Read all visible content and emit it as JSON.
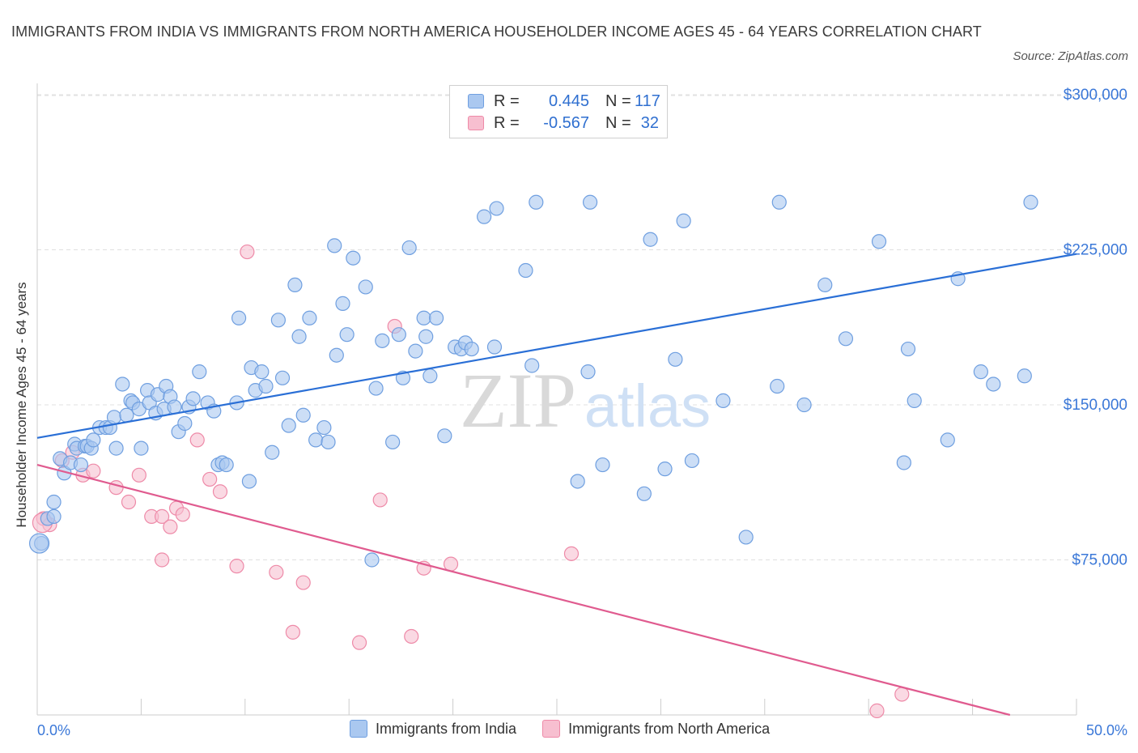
{
  "title": "IMMIGRANTS FROM INDIA VS IMMIGRANTS FROM NORTH AMERICA HOUSEHOLDER INCOME AGES 45 - 64 YEARS CORRELATION CHART",
  "source": "Source: ZipAtlas.com",
  "watermark": {
    "zip": "ZIP",
    "atlas": "atlas"
  },
  "legend": {
    "r_label": "R =",
    "n_label": "N =",
    "india": {
      "r": "0.445",
      "n": "117"
    },
    "north_america": {
      "r": "-0.567",
      "n": "32"
    }
  },
  "bottom_legend": {
    "india": "Immigrants from India",
    "north_america": "Immigrants from North America"
  },
  "colors": {
    "india_fill": "#aac8f0",
    "india_stroke": "#6f9fe0",
    "india_line": "#2a6fd6",
    "na_fill": "#f7bfd0",
    "na_stroke": "#ee8aa8",
    "na_line": "#e05b8f",
    "axis_text": "#3b78d8",
    "grid": "#e0e0e0"
  },
  "chart_data": {
    "type": "scatter",
    "xlabel": "",
    "ylabel": "Householder Income Ages 45 - 64 years",
    "xlim": [
      0,
      50
    ],
    "ylim": [
      0,
      300000
    ],
    "x_tick_labels": [
      "0.0%",
      "50.0%"
    ],
    "y_ticks": [
      75000,
      150000,
      225000,
      300000
    ],
    "y_tick_labels": [
      "$75,000",
      "$150,000",
      "$225,000",
      "$300,000"
    ],
    "grid": true,
    "series": [
      {
        "name": "Immigrants from India",
        "trend": [
          [
            0,
            134000
          ],
          [
            50,
            223000
          ]
        ],
        "points": [
          [
            0.2,
            83000
          ],
          [
            0.5,
            95000
          ],
          [
            0.8,
            96000
          ],
          [
            0.8,
            103000
          ],
          [
            1.1,
            124000
          ],
          [
            1.3,
            117000
          ],
          [
            1.6,
            122000
          ],
          [
            1.8,
            131000
          ],
          [
            1.9,
            129000
          ],
          [
            2.1,
            121000
          ],
          [
            2.3,
            130000
          ],
          [
            2.4,
            130000
          ],
          [
            2.6,
            129000
          ],
          [
            2.7,
            133000
          ],
          [
            3.0,
            139000
          ],
          [
            3.3,
            139000
          ],
          [
            3.5,
            139000
          ],
          [
            3.7,
            144000
          ],
          [
            3.8,
            129000
          ],
          [
            4.1,
            160000
          ],
          [
            4.3,
            145000
          ],
          [
            4.5,
            152000
          ],
          [
            4.6,
            151000
          ],
          [
            4.9,
            148000
          ],
          [
            5.0,
            129000
          ],
          [
            5.3,
            157000
          ],
          [
            5.4,
            151000
          ],
          [
            5.7,
            146000
          ],
          [
            5.8,
            155000
          ],
          [
            6.1,
            148000
          ],
          [
            6.2,
            159000
          ],
          [
            6.4,
            154000
          ],
          [
            6.6,
            149000
          ],
          [
            6.8,
            137000
          ],
          [
            7.1,
            141000
          ],
          [
            7.3,
            149000
          ],
          [
            7.5,
            153000
          ],
          [
            7.8,
            166000
          ],
          [
            8.2,
            151000
          ],
          [
            8.5,
            147000
          ],
          [
            8.7,
            121000
          ],
          [
            8.9,
            122000
          ],
          [
            9.1,
            121000
          ],
          [
            9.6,
            151000
          ],
          [
            9.7,
            192000
          ],
          [
            10.2,
            113000
          ],
          [
            10.3,
            168000
          ],
          [
            10.5,
            157000
          ],
          [
            10.8,
            166000
          ],
          [
            11.0,
            159000
          ],
          [
            11.3,
            127000
          ],
          [
            11.6,
            191000
          ],
          [
            11.8,
            163000
          ],
          [
            12.1,
            140000
          ],
          [
            12.4,
            208000
          ],
          [
            12.6,
            183000
          ],
          [
            12.8,
            145000
          ],
          [
            13.1,
            192000
          ],
          [
            13.4,
            133000
          ],
          [
            13.8,
            139000
          ],
          [
            14.0,
            132000
          ],
          [
            14.3,
            227000
          ],
          [
            14.4,
            174000
          ],
          [
            14.7,
            199000
          ],
          [
            14.9,
            184000
          ],
          [
            15.2,
            221000
          ],
          [
            15.8,
            207000
          ],
          [
            16.1,
            75000
          ],
          [
            16.3,
            158000
          ],
          [
            16.6,
            181000
          ],
          [
            17.1,
            132000
          ],
          [
            17.4,
            184000
          ],
          [
            17.6,
            163000
          ],
          [
            17.9,
            226000
          ],
          [
            18.2,
            176000
          ],
          [
            18.6,
            192000
          ],
          [
            18.7,
            183000
          ],
          [
            18.9,
            164000
          ],
          [
            19.2,
            192000
          ],
          [
            19.6,
            135000
          ],
          [
            20.1,
            178000
          ],
          [
            20.4,
            177000
          ],
          [
            20.6,
            180000
          ],
          [
            20.9,
            177000
          ],
          [
            21.5,
            241000
          ],
          [
            22.0,
            178000
          ],
          [
            22.1,
            245000
          ],
          [
            23.5,
            215000
          ],
          [
            23.8,
            169000
          ],
          [
            24.0,
            248000
          ],
          [
            26.0,
            113000
          ],
          [
            26.5,
            166000
          ],
          [
            26.6,
            248000
          ],
          [
            27.2,
            121000
          ],
          [
            29.2,
            107000
          ],
          [
            29.5,
            230000
          ],
          [
            30.2,
            119000
          ],
          [
            30.7,
            172000
          ],
          [
            31.1,
            239000
          ],
          [
            31.5,
            123000
          ],
          [
            33.0,
            152000
          ],
          [
            34.1,
            86000
          ],
          [
            35.6,
            159000
          ],
          [
            35.7,
            248000
          ],
          [
            36.9,
            150000
          ],
          [
            37.9,
            208000
          ],
          [
            38.9,
            182000
          ],
          [
            40.5,
            229000
          ],
          [
            41.7,
            122000
          ],
          [
            41.9,
            177000
          ],
          [
            42.2,
            152000
          ],
          [
            43.8,
            133000
          ],
          [
            44.3,
            211000
          ],
          [
            45.4,
            166000
          ],
          [
            46.0,
            160000
          ],
          [
            47.5,
            164000
          ],
          [
            47.8,
            248000
          ]
        ]
      },
      {
        "name": "Immigrants from North America",
        "trend": [
          [
            0,
            121000
          ],
          [
            46.8,
            0
          ]
        ],
        "points": [
          [
            0.3,
            95000
          ],
          [
            0.6,
            92000
          ],
          [
            1.2,
            123000
          ],
          [
            1.7,
            127000
          ],
          [
            2.2,
            116000
          ],
          [
            2.7,
            118000
          ],
          [
            3.8,
            110000
          ],
          [
            4.4,
            103000
          ],
          [
            4.9,
            116000
          ],
          [
            5.5,
            96000
          ],
          [
            6.0,
            96000
          ],
          [
            6.4,
            91000
          ],
          [
            6.0,
            75000
          ],
          [
            6.7,
            100000
          ],
          [
            7.0,
            97000
          ],
          [
            7.7,
            133000
          ],
          [
            8.3,
            114000
          ],
          [
            8.8,
            108000
          ],
          [
            9.6,
            72000
          ],
          [
            10.1,
            224000
          ],
          [
            11.5,
            69000
          ],
          [
            12.3,
            40000
          ],
          [
            12.8,
            64000
          ],
          [
            15.5,
            35000
          ],
          [
            16.5,
            104000
          ],
          [
            17.2,
            188000
          ],
          [
            18.0,
            38000
          ],
          [
            18.6,
            71000
          ],
          [
            19.9,
            73000
          ],
          [
            25.7,
            78000
          ],
          [
            40.4,
            2000
          ],
          [
            41.6,
            10000
          ]
        ]
      }
    ]
  }
}
